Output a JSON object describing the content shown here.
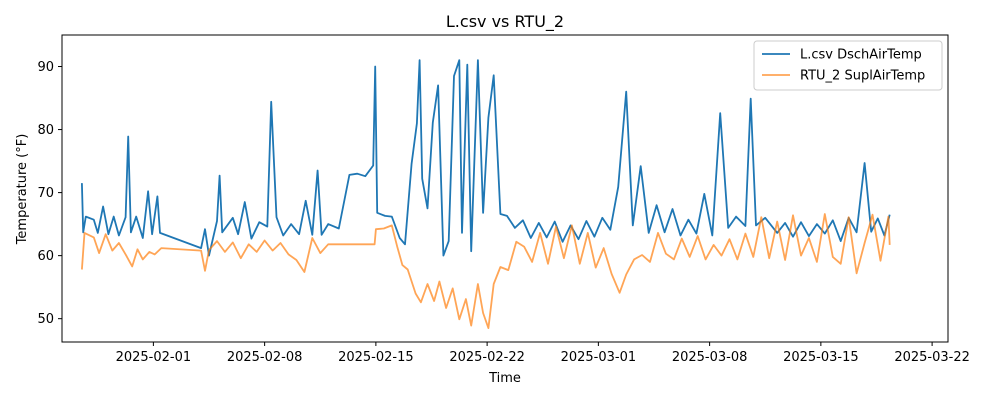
{
  "chart_data": {
    "type": "line",
    "title": "L.csv vs RTU_2",
    "xlabel": "Time",
    "ylabel": "Temperature (°F)",
    "x_axis_type": "date",
    "xlim": [
      "2025-01-26T06:00",
      "2025-03-23T00:00"
    ],
    "ylim": [
      46.3,
      95.0
    ],
    "x_ticks": [
      "2025-02-01",
      "2025-02-08",
      "2025-02-15",
      "2025-02-22",
      "2025-03-01",
      "2025-03-08",
      "2025-03-15",
      "2025-03-22"
    ],
    "y_ticks": [
      50,
      60,
      70,
      80,
      90
    ],
    "grid": false,
    "legend_position": "top-right",
    "series": [
      {
        "name": "L.csv DschAirTemp",
        "color": "#1f77b4",
        "points": [
          [
            "2025-01-27T12:00",
            71.5
          ],
          [
            "2025-01-27T14:00",
            63.7
          ],
          [
            "2025-01-27T18:00",
            66.2
          ],
          [
            "2025-01-28T06:00",
            65.7
          ],
          [
            "2025-01-28T12:00",
            63.6
          ],
          [
            "2025-01-28T20:00",
            67.8
          ],
          [
            "2025-01-29T04:00",
            63.4
          ],
          [
            "2025-01-29T12:00",
            66.2
          ],
          [
            "2025-01-29T20:00",
            63.2
          ],
          [
            "2025-01-30T06:00",
            66.1
          ],
          [
            "2025-01-30T10:00",
            78.9
          ],
          [
            "2025-01-30T14:00",
            63.7
          ],
          [
            "2025-01-30T22:00",
            66.2
          ],
          [
            "2025-01-31T08:00",
            62.8
          ],
          [
            "2025-01-31T16:00",
            70.2
          ],
          [
            "2025-01-31T22:00",
            63.4
          ],
          [
            "2025-02-01T06:00",
            69.4
          ],
          [
            "2025-02-01T10:00",
            63.6
          ],
          [
            "2025-02-04T00:00",
            61.2
          ],
          [
            "2025-02-04T06:00",
            64.2
          ],
          [
            "2025-02-04T12:00",
            60.0
          ],
          [
            "2025-02-05T00:00",
            65.5
          ],
          [
            "2025-02-05T04:00",
            72.7
          ],
          [
            "2025-02-05T08:00",
            63.7
          ],
          [
            "2025-02-06T00:00",
            66.0
          ],
          [
            "2025-02-06T08:00",
            63.4
          ],
          [
            "2025-02-06T18:00",
            68.5
          ],
          [
            "2025-02-07T04:00",
            62.7
          ],
          [
            "2025-02-07T16:00",
            65.3
          ],
          [
            "2025-02-08T04:00",
            64.6
          ],
          [
            "2025-02-08T10:00",
            84.4
          ],
          [
            "2025-02-08T18:00",
            66.1
          ],
          [
            "2025-02-09T04:00",
            63.2
          ],
          [
            "2025-02-09T16:00",
            65.0
          ],
          [
            "2025-02-10T04:00",
            63.4
          ],
          [
            "2025-02-10T14:00",
            68.7
          ],
          [
            "2025-02-11T00:00",
            63.3
          ],
          [
            "2025-02-11T08:00",
            73.5
          ],
          [
            "2025-02-11T14:00",
            63.3
          ],
          [
            "2025-02-12T00:00",
            65.0
          ],
          [
            "2025-02-12T16:00",
            64.3
          ],
          [
            "2025-02-13T08:00",
            72.8
          ],
          [
            "2025-02-13T20:00",
            73.0
          ],
          [
            "2025-02-14T08:00",
            72.6
          ],
          [
            "2025-02-14T20:00",
            74.3
          ],
          [
            "2025-02-14T23:00",
            90.0
          ],
          [
            "2025-02-15T02:00",
            66.8
          ],
          [
            "2025-02-15T14:00",
            66.3
          ],
          [
            "2025-02-16T00:00",
            66.2
          ],
          [
            "2025-02-16T12:00",
            62.8
          ],
          [
            "2025-02-16T20:00",
            61.8
          ],
          [
            "2025-02-17T06:00",
            74.6
          ],
          [
            "2025-02-17T14:00",
            81.0
          ],
          [
            "2025-02-17T18:00",
            91.0
          ],
          [
            "2025-02-17T22:00",
            72.2
          ],
          [
            "2025-02-18T06:00",
            67.5
          ],
          [
            "2025-02-18T14:00",
            81.1
          ],
          [
            "2025-02-18T22:00",
            87.0
          ],
          [
            "2025-02-19T06:00",
            60.0
          ],
          [
            "2025-02-19T14:00",
            62.3
          ],
          [
            "2025-02-19T22:00",
            88.5
          ],
          [
            "2025-02-20T06:00",
            91.0
          ],
          [
            "2025-02-20T10:00",
            63.6
          ],
          [
            "2025-02-20T18:00",
            90.3
          ],
          [
            "2025-02-21T00:00",
            60.7
          ],
          [
            "2025-02-21T10:00",
            91.0
          ],
          [
            "2025-02-21T18:00",
            66.8
          ],
          [
            "2025-02-22T02:00",
            81.9
          ],
          [
            "2025-02-22T10:00",
            88.6
          ],
          [
            "2025-02-22T20:00",
            66.6
          ],
          [
            "2025-02-23T06:00",
            66.3
          ],
          [
            "2025-02-23T18:00",
            64.4
          ],
          [
            "2025-02-24T06:00",
            65.6
          ],
          [
            "2025-02-24T18:00",
            62.8
          ],
          [
            "2025-02-25T06:00",
            65.2
          ],
          [
            "2025-02-25T18:00",
            62.9
          ],
          [
            "2025-02-26T06:00",
            65.4
          ],
          [
            "2025-02-26T18:00",
            62.2
          ],
          [
            "2025-02-27T06:00",
            64.8
          ],
          [
            "2025-02-27T18:00",
            62.6
          ],
          [
            "2025-02-28T06:00",
            65.5
          ],
          [
            "2025-02-28T18:00",
            63.0
          ],
          [
            "2025-03-01T06:00",
            66.0
          ],
          [
            "2025-03-01T18:00",
            64.1
          ],
          [
            "2025-03-02T06:00",
            70.9
          ],
          [
            "2025-03-02T18:00",
            86.0
          ],
          [
            "2025-03-03T04:00",
            64.8
          ],
          [
            "2025-03-03T16:00",
            74.2
          ],
          [
            "2025-03-04T04:00",
            63.6
          ],
          [
            "2025-03-04T16:00",
            68.0
          ],
          [
            "2025-03-05T04:00",
            63.7
          ],
          [
            "2025-03-05T16:00",
            67.4
          ],
          [
            "2025-03-06T04:00",
            63.2
          ],
          [
            "2025-03-06T16:00",
            65.7
          ],
          [
            "2025-03-07T04:00",
            63.5
          ],
          [
            "2025-03-07T16:00",
            69.8
          ],
          [
            "2025-03-08T04:00",
            63.2
          ],
          [
            "2025-03-08T16:00",
            82.6
          ],
          [
            "2025-03-09T04:00",
            64.4
          ],
          [
            "2025-03-09T16:00",
            66.2
          ],
          [
            "2025-03-10T06:00",
            64.7
          ],
          [
            "2025-03-10T14:00",
            84.9
          ],
          [
            "2025-03-10T22:00",
            64.8
          ],
          [
            "2025-03-11T12:00",
            66.0
          ],
          [
            "2025-03-12T06:00",
            63.6
          ],
          [
            "2025-03-12T18:00",
            65.2
          ],
          [
            "2025-03-13T06:00",
            63.0
          ],
          [
            "2025-03-13T18:00",
            65.3
          ],
          [
            "2025-03-14T06:00",
            63.1
          ],
          [
            "2025-03-14T18:00",
            65.0
          ],
          [
            "2025-03-15T06:00",
            63.5
          ],
          [
            "2025-03-15T18:00",
            65.6
          ],
          [
            "2025-03-16T06:00",
            62.3
          ],
          [
            "2025-03-16T18:00",
            66.0
          ],
          [
            "2025-03-17T06:00",
            63.7
          ],
          [
            "2025-03-17T18:00",
            74.7
          ],
          [
            "2025-03-18T04:00",
            63.8
          ],
          [
            "2025-03-18T14:00",
            65.9
          ],
          [
            "2025-03-19T00:00",
            63.2
          ],
          [
            "2025-03-19T08:00",
            66.5
          ]
        ]
      },
      {
        "name": "RTU_2 SuplAirTemp",
        "color": "#ff7f0e",
        "points": [
          [
            "2025-01-27T12:00",
            57.8
          ],
          [
            "2025-01-27T16:00",
            63.6
          ],
          [
            "2025-01-28T06:00",
            62.9
          ],
          [
            "2025-01-28T14:00",
            60.4
          ],
          [
            "2025-01-29T00:00",
            63.4
          ],
          [
            "2025-01-29T10:00",
            60.8
          ],
          [
            "2025-01-29T20:00",
            62.0
          ],
          [
            "2025-01-30T06:00",
            60.2
          ],
          [
            "2025-01-30T16:00",
            58.3
          ],
          [
            "2025-01-31T00:00",
            61.0
          ],
          [
            "2025-01-31T08:00",
            59.4
          ],
          [
            "2025-01-31T18:00",
            60.6
          ],
          [
            "2025-02-01T02:00",
            60.2
          ],
          [
            "2025-02-01T12:00",
            61.2
          ],
          [
            "2025-02-04T00:00",
            60.8
          ],
          [
            "2025-02-04T06:00",
            57.6
          ],
          [
            "2025-02-04T12:00",
            60.9
          ],
          [
            "2025-02-05T00:00",
            62.3
          ],
          [
            "2025-02-05T12:00",
            60.6
          ],
          [
            "2025-02-06T00:00",
            62.1
          ],
          [
            "2025-02-06T12:00",
            59.6
          ],
          [
            "2025-02-07T00:00",
            61.8
          ],
          [
            "2025-02-07T12:00",
            60.6
          ],
          [
            "2025-02-08T00:00",
            62.4
          ],
          [
            "2025-02-08T12:00",
            60.8
          ],
          [
            "2025-02-09T00:00",
            62.0
          ],
          [
            "2025-02-09T12:00",
            60.2
          ],
          [
            "2025-02-10T00:00",
            59.3
          ],
          [
            "2025-02-10T12:00",
            57.4
          ],
          [
            "2025-02-11T00:00",
            62.8
          ],
          [
            "2025-02-11T12:00",
            60.4
          ],
          [
            "2025-02-12T00:00",
            61.8
          ],
          [
            "2025-02-13T00:00",
            61.8
          ],
          [
            "2025-02-14T00:00",
            61.8
          ],
          [
            "2025-02-14T22:00",
            61.8
          ],
          [
            "2025-02-15T00:00",
            64.2
          ],
          [
            "2025-02-15T12:00",
            64.3
          ],
          [
            "2025-02-16T00:00",
            64.8
          ],
          [
            "2025-02-16T08:00",
            61.5
          ],
          [
            "2025-02-16T16:00",
            58.5
          ],
          [
            "2025-02-17T00:00",
            57.8
          ],
          [
            "2025-02-17T12:00",
            54.0
          ],
          [
            "2025-02-17T20:00",
            52.6
          ],
          [
            "2025-02-18T06:00",
            55.5
          ],
          [
            "2025-02-18T16:00",
            52.8
          ],
          [
            "2025-02-19T00:00",
            55.9
          ],
          [
            "2025-02-19T10:00",
            51.7
          ],
          [
            "2025-02-19T20:00",
            54.8
          ],
          [
            "2025-02-20T06:00",
            49.9
          ],
          [
            "2025-02-20T16:00",
            53.1
          ],
          [
            "2025-02-21T00:00",
            48.9
          ],
          [
            "2025-02-21T10:00",
            55.5
          ],
          [
            "2025-02-21T18:00",
            50.9
          ],
          [
            "2025-02-22T02:00",
            48.5
          ],
          [
            "2025-02-22T10:00",
            55.5
          ],
          [
            "2025-02-22T20:00",
            58.2
          ],
          [
            "2025-02-23T08:00",
            57.7
          ],
          [
            "2025-02-23T20:00",
            62.2
          ],
          [
            "2025-02-24T08:00",
            61.4
          ],
          [
            "2025-02-24T20:00",
            59.0
          ],
          [
            "2025-02-25T08:00",
            63.6
          ],
          [
            "2025-02-25T20:00",
            58.7
          ],
          [
            "2025-02-26T08:00",
            64.6
          ],
          [
            "2025-02-26T20:00",
            59.6
          ],
          [
            "2025-02-27T08:00",
            64.8
          ],
          [
            "2025-02-27T20:00",
            58.7
          ],
          [
            "2025-02-28T08:00",
            63.6
          ],
          [
            "2025-02-28T20:00",
            58.1
          ],
          [
            "2025-03-01T08:00",
            61.2
          ],
          [
            "2025-03-01T20:00",
            57.1
          ],
          [
            "2025-03-02T08:00",
            54.1
          ],
          [
            "2025-03-02T18:00",
            57.0
          ],
          [
            "2025-03-03T06:00",
            59.4
          ],
          [
            "2025-03-03T18:00",
            60.1
          ],
          [
            "2025-03-04T06:00",
            59.0
          ],
          [
            "2025-03-04T18:00",
            63.6
          ],
          [
            "2025-03-05T06:00",
            60.3
          ],
          [
            "2025-03-05T18:00",
            59.4
          ],
          [
            "2025-03-06T06:00",
            62.7
          ],
          [
            "2025-03-06T18:00",
            59.8
          ],
          [
            "2025-03-07T06:00",
            63.1
          ],
          [
            "2025-03-07T18:00",
            59.4
          ],
          [
            "2025-03-08T06:00",
            61.7
          ],
          [
            "2025-03-08T18:00",
            60.0
          ],
          [
            "2025-03-09T06:00",
            62.6
          ],
          [
            "2025-03-09T18:00",
            59.4
          ],
          [
            "2025-03-10T06:00",
            63.5
          ],
          [
            "2025-03-10T18:00",
            59.8
          ],
          [
            "2025-03-11T06:00",
            66.1
          ],
          [
            "2025-03-11T18:00",
            59.6
          ],
          [
            "2025-03-12T06:00",
            65.4
          ],
          [
            "2025-03-12T18:00",
            59.3
          ],
          [
            "2025-03-13T06:00",
            66.4
          ],
          [
            "2025-03-13T18:00",
            60.0
          ],
          [
            "2025-03-14T06:00",
            62.8
          ],
          [
            "2025-03-14T18:00",
            59.0
          ],
          [
            "2025-03-15T06:00",
            66.6
          ],
          [
            "2025-03-15T18:00",
            59.8
          ],
          [
            "2025-03-16T06:00",
            58.7
          ],
          [
            "2025-03-16T18:00",
            66.1
          ],
          [
            "2025-03-17T06:00",
            57.2
          ],
          [
            "2025-03-17T18:00",
            62.0
          ],
          [
            "2025-03-18T06:00",
            66.5
          ],
          [
            "2025-03-18T18:00",
            59.2
          ],
          [
            "2025-03-19T06:00",
            66.2
          ],
          [
            "2025-03-19T08:00",
            61.7
          ]
        ]
      }
    ]
  }
}
